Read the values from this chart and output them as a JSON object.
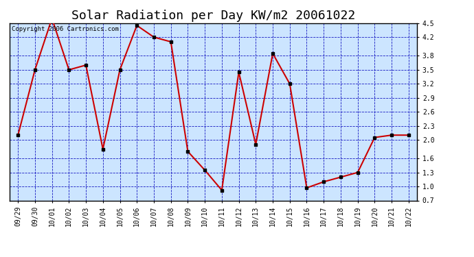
{
  "title": "Solar Radiation per Day KW/m2 20061022",
  "copyright": "Copyright 2006 Cartronics.com",
  "x_labels": [
    "09/29",
    "09/30",
    "10/01",
    "10/02",
    "10/03",
    "10/04",
    "10/05",
    "10/06",
    "10/07",
    "10/08",
    "10/09",
    "10/10",
    "10/11",
    "10/12",
    "10/13",
    "10/14",
    "10/15",
    "10/16",
    "10/17",
    "10/18",
    "10/19",
    "10/20",
    "10/21",
    "10/22"
  ],
  "y_values": [
    2.1,
    3.5,
    4.6,
    3.5,
    3.6,
    1.8,
    3.5,
    4.45,
    4.2,
    4.1,
    1.75,
    1.35,
    0.92,
    3.45,
    1.9,
    3.85,
    3.2,
    0.97,
    1.1,
    1.2,
    1.3,
    2.05,
    2.1,
    2.1
  ],
  "line_color": "#cc0000",
  "marker_color": "#000000",
  "fig_bg_color": "#ffffff",
  "plot_bg_color": "#cce5ff",
  "grid_color": "#0000bb",
  "axis_color": "#000000",
  "ylim_min": 0.7,
  "ylim_max": 4.5,
  "y_ticks": [
    0.7,
    1.0,
    1.3,
    1.6,
    2.0,
    2.3,
    2.6,
    2.9,
    3.2,
    3.5,
    3.8,
    4.2,
    4.5
  ],
  "title_fontsize": 13,
  "copyright_fontsize": 6.5,
  "tick_fontsize": 7
}
